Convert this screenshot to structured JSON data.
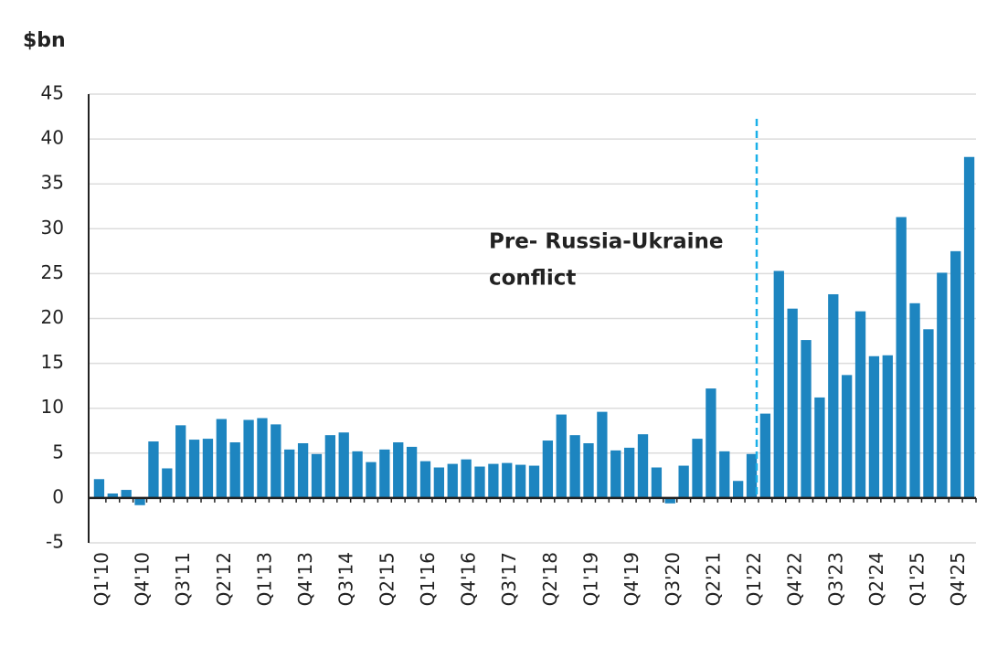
{
  "chart_data": {
    "type": "bar",
    "y_label": "$bn",
    "annotation": [
      "Pre- Russia-Ukraine",
      "conflict"
    ],
    "categories": [
      "Q1'10",
      null,
      null,
      "Q4'10",
      null,
      null,
      "Q3'11",
      null,
      null,
      "Q2'12",
      null,
      null,
      "Q1'13",
      null,
      null,
      "Q4'13",
      null,
      null,
      "Q3'14",
      null,
      null,
      "Q2'15",
      null,
      null,
      "Q1'16",
      null,
      null,
      "Q4'16",
      null,
      null,
      "Q3'17",
      null,
      null,
      "Q2'18",
      null,
      null,
      "Q1'19",
      null,
      null,
      "Q4'19",
      null,
      null,
      "Q3'20",
      null,
      null,
      "Q2'21",
      null,
      null,
      "Q1'22",
      null,
      null,
      "Q4'22",
      null,
      null,
      "Q3'23",
      null,
      null,
      "Q2'24",
      null,
      null,
      "Q1'25",
      null,
      null,
      "Q4'25",
      null
    ],
    "values": [
      2.1,
      0.5,
      0.9,
      -0.8,
      6.3,
      3.3,
      8.1,
      6.5,
      6.6,
      8.8,
      6.2,
      8.7,
      8.9,
      8.2,
      5.4,
      6.1,
      4.9,
      7.0,
      7.3,
      5.2,
      4.0,
      5.4,
      6.2,
      5.7,
      4.1,
      3.4,
      3.8,
      4.3,
      3.5,
      3.8,
      3.9,
      3.7,
      3.6,
      6.4,
      9.3,
      7.0,
      6.1,
      9.6,
      5.3,
      5.6,
      7.1,
      3.4,
      -0.6,
      3.6,
      6.6,
      12.2,
      5.2,
      1.9,
      4.9,
      9.4,
      25.3,
      21.1,
      17.6,
      11.2,
      22.7,
      13.7,
      20.8,
      15.8,
      15.9,
      31.3,
      21.7,
      18.8,
      25.1,
      27.5,
      38.0
    ],
    "color": "#1d85c0",
    "ylim": [
      -5,
      45
    ],
    "yticks": [
      -5,
      0,
      5,
      10,
      15,
      20,
      25,
      30,
      35,
      40,
      45
    ],
    "grid": true
  }
}
